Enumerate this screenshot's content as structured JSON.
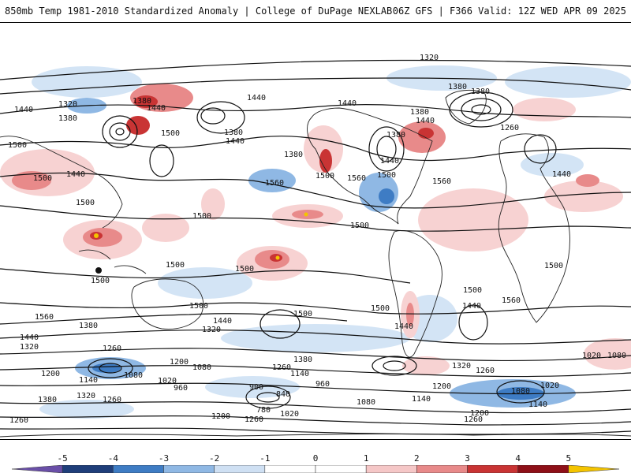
{
  "header": {
    "title_left": "850mb Temp 1981-2010 Standardized Anomaly | College of DuPage NEXLAB",
    "title_right": "06Z GFS | F366 Valid: 12Z WED APR 09 2025"
  },
  "colorbar": {
    "ticks": [
      "-5",
      "-4",
      "-3",
      "-2",
      "-1",
      "0",
      "1",
      "2",
      "3",
      "4",
      "5"
    ],
    "colors": [
      "#6a4fa8",
      "#1f3e7a",
      "#3e7cc4",
      "#8fb8e4",
      "#cfe0f3",
      "#ffffff",
      "#ffffff",
      "#f5c7c7",
      "#e88a8a",
      "#c93434",
      "#8e1018",
      "#f4c400"
    ]
  },
  "map": {
    "contour_labels": [
      "1320",
      "1380",
      "1440",
      "1500",
      "1560",
      "1260",
      "1200",
      "1140",
      "1080",
      "1020",
      "960",
      "900",
      "840",
      "780"
    ],
    "highlight_colors": {
      "warm_light": "#f7d2d2",
      "warm": "#e88a8a",
      "warm_strong": "#c93434",
      "warm_extreme": "#f4c400",
      "cool_light": "#d3e4f5",
      "cool": "#8fb8e4",
      "cool_strong": "#3e7cc4"
    }
  }
}
